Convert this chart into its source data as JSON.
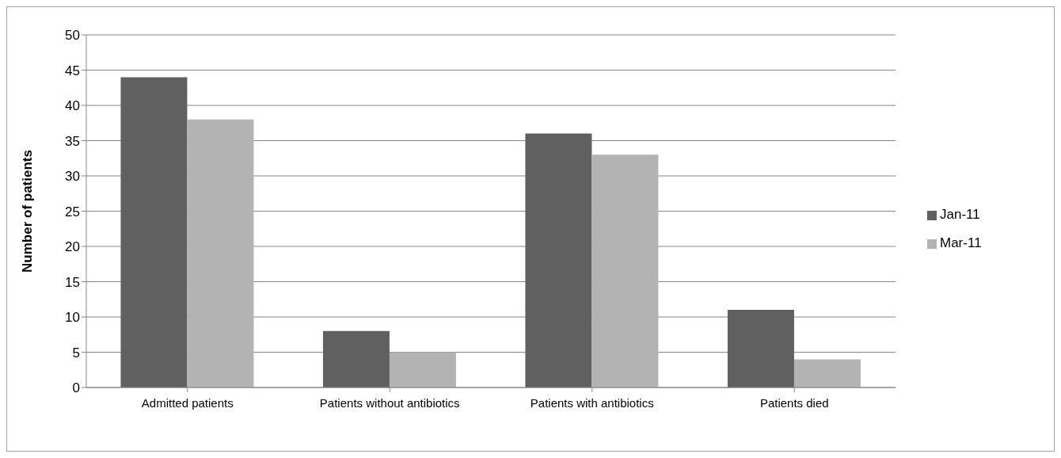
{
  "chart_data": {
    "type": "bar",
    "ylabel": "Number of patients",
    "categories": [
      "Admitted patients",
      "Patients without antibiotics",
      "Patients with antibiotics",
      "Patients died"
    ],
    "series": [
      {
        "name": "Jan-11",
        "color": "#606060",
        "values": [
          44,
          8,
          36,
          11
        ]
      },
      {
        "name": "Mar-11",
        "color": "#b3b3b3",
        "values": [
          38,
          5,
          33,
          4
        ]
      }
    ],
    "ylim": [
      0,
      50
    ],
    "yticks": [
      0,
      5,
      10,
      15,
      20,
      25,
      30,
      35,
      40,
      45,
      50
    ],
    "grid": "y",
    "legend": "right"
  }
}
